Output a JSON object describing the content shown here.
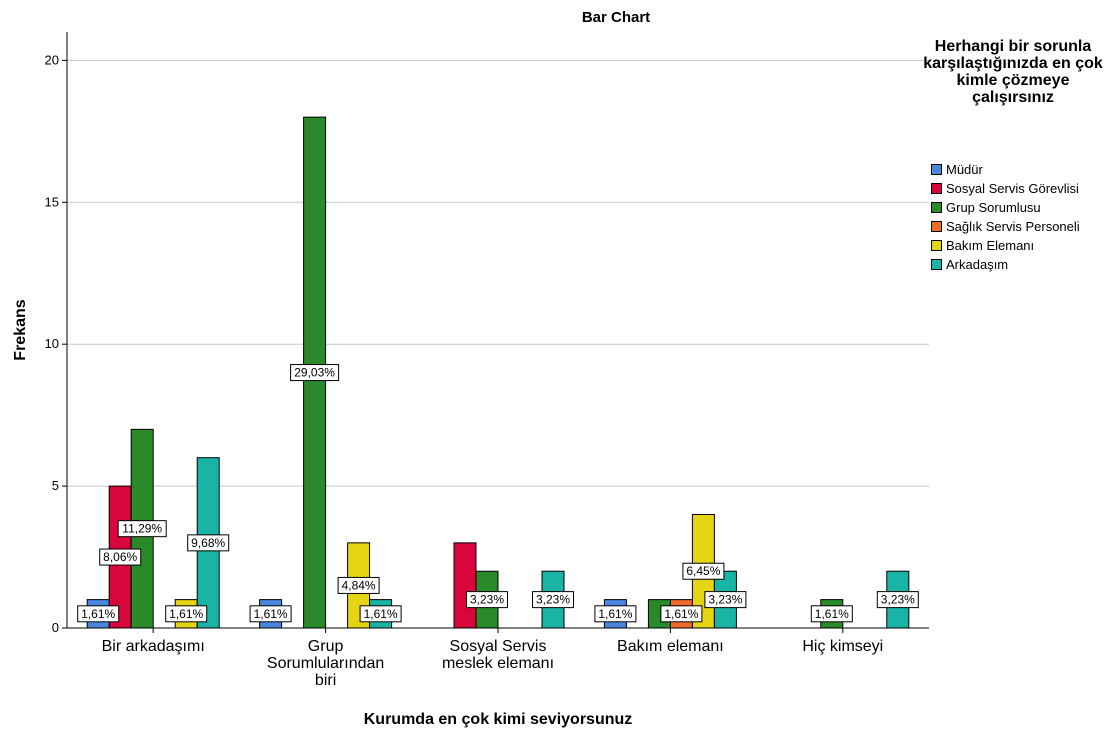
{
  "chart_data": {
    "type": "bar",
    "title": "Bar Chart",
    "xlabel": "Kurumda en çok kimi seviyorsunuz",
    "ylabel": "Frekans",
    "ylim": [
      0,
      21
    ],
    "yticks": [
      0,
      5,
      10,
      15,
      20
    ],
    "grid": true,
    "legend_title": "Herhangi bir sorunla karşılaştığınızda en çok kimle çözmeye çalışırsınız",
    "legend_placement": "right",
    "categories": [
      [
        "Bir arkadaşımı"
      ],
      [
        "Grup",
        "Sorumlularından",
        "biri"
      ],
      [
        "Sosyal Servis",
        "meslek elemanı"
      ],
      [
        "Bakım elemanı"
      ],
      [
        "Hiç kimseyi"
      ]
    ],
    "series": [
      {
        "name": "Müdür",
        "color": "#4a86e0",
        "values": [
          1,
          1,
          0,
          1,
          0
        ],
        "labels": [
          "1,61%",
          "1,61%",
          "",
          "1,61%",
          ""
        ]
      },
      {
        "name": "Sosyal Servis Görevlisi",
        "color": "#d8063a",
        "values": [
          5,
          0,
          3,
          0,
          0
        ],
        "labels": [
          "8,06%",
          "",
          "",
          "",
          ""
        ]
      },
      {
        "name": "Grup Sorumlusu",
        "color": "#2a8a2a",
        "values": [
          7,
          18,
          2,
          1,
          1
        ],
        "labels": [
          "11,29%",
          "29,03%",
          "3,23%",
          "",
          "1,61%"
        ]
      },
      {
        "name": "Sağlık Servis Personeli",
        "color": "#f06a28",
        "values": [
          0,
          0,
          0,
          1,
          0
        ],
        "labels": [
          "",
          "",
          "",
          "1,61%",
          ""
        ]
      },
      {
        "name": "Bakım Elemanı",
        "color": "#e4d412",
        "values": [
          1,
          3,
          0,
          4,
          0
        ],
        "labels": [
          "1,61%",
          "4,84%",
          "",
          "6,45%",
          ""
        ]
      },
      {
        "name": "Arkadaşım",
        "color": "#1ab4a6",
        "values": [
          6,
          1,
          2,
          2,
          2
        ],
        "labels": [
          "9,68%",
          "1,61%",
          "3,23%",
          "3,23%",
          "3,23%"
        ]
      }
    ]
  }
}
